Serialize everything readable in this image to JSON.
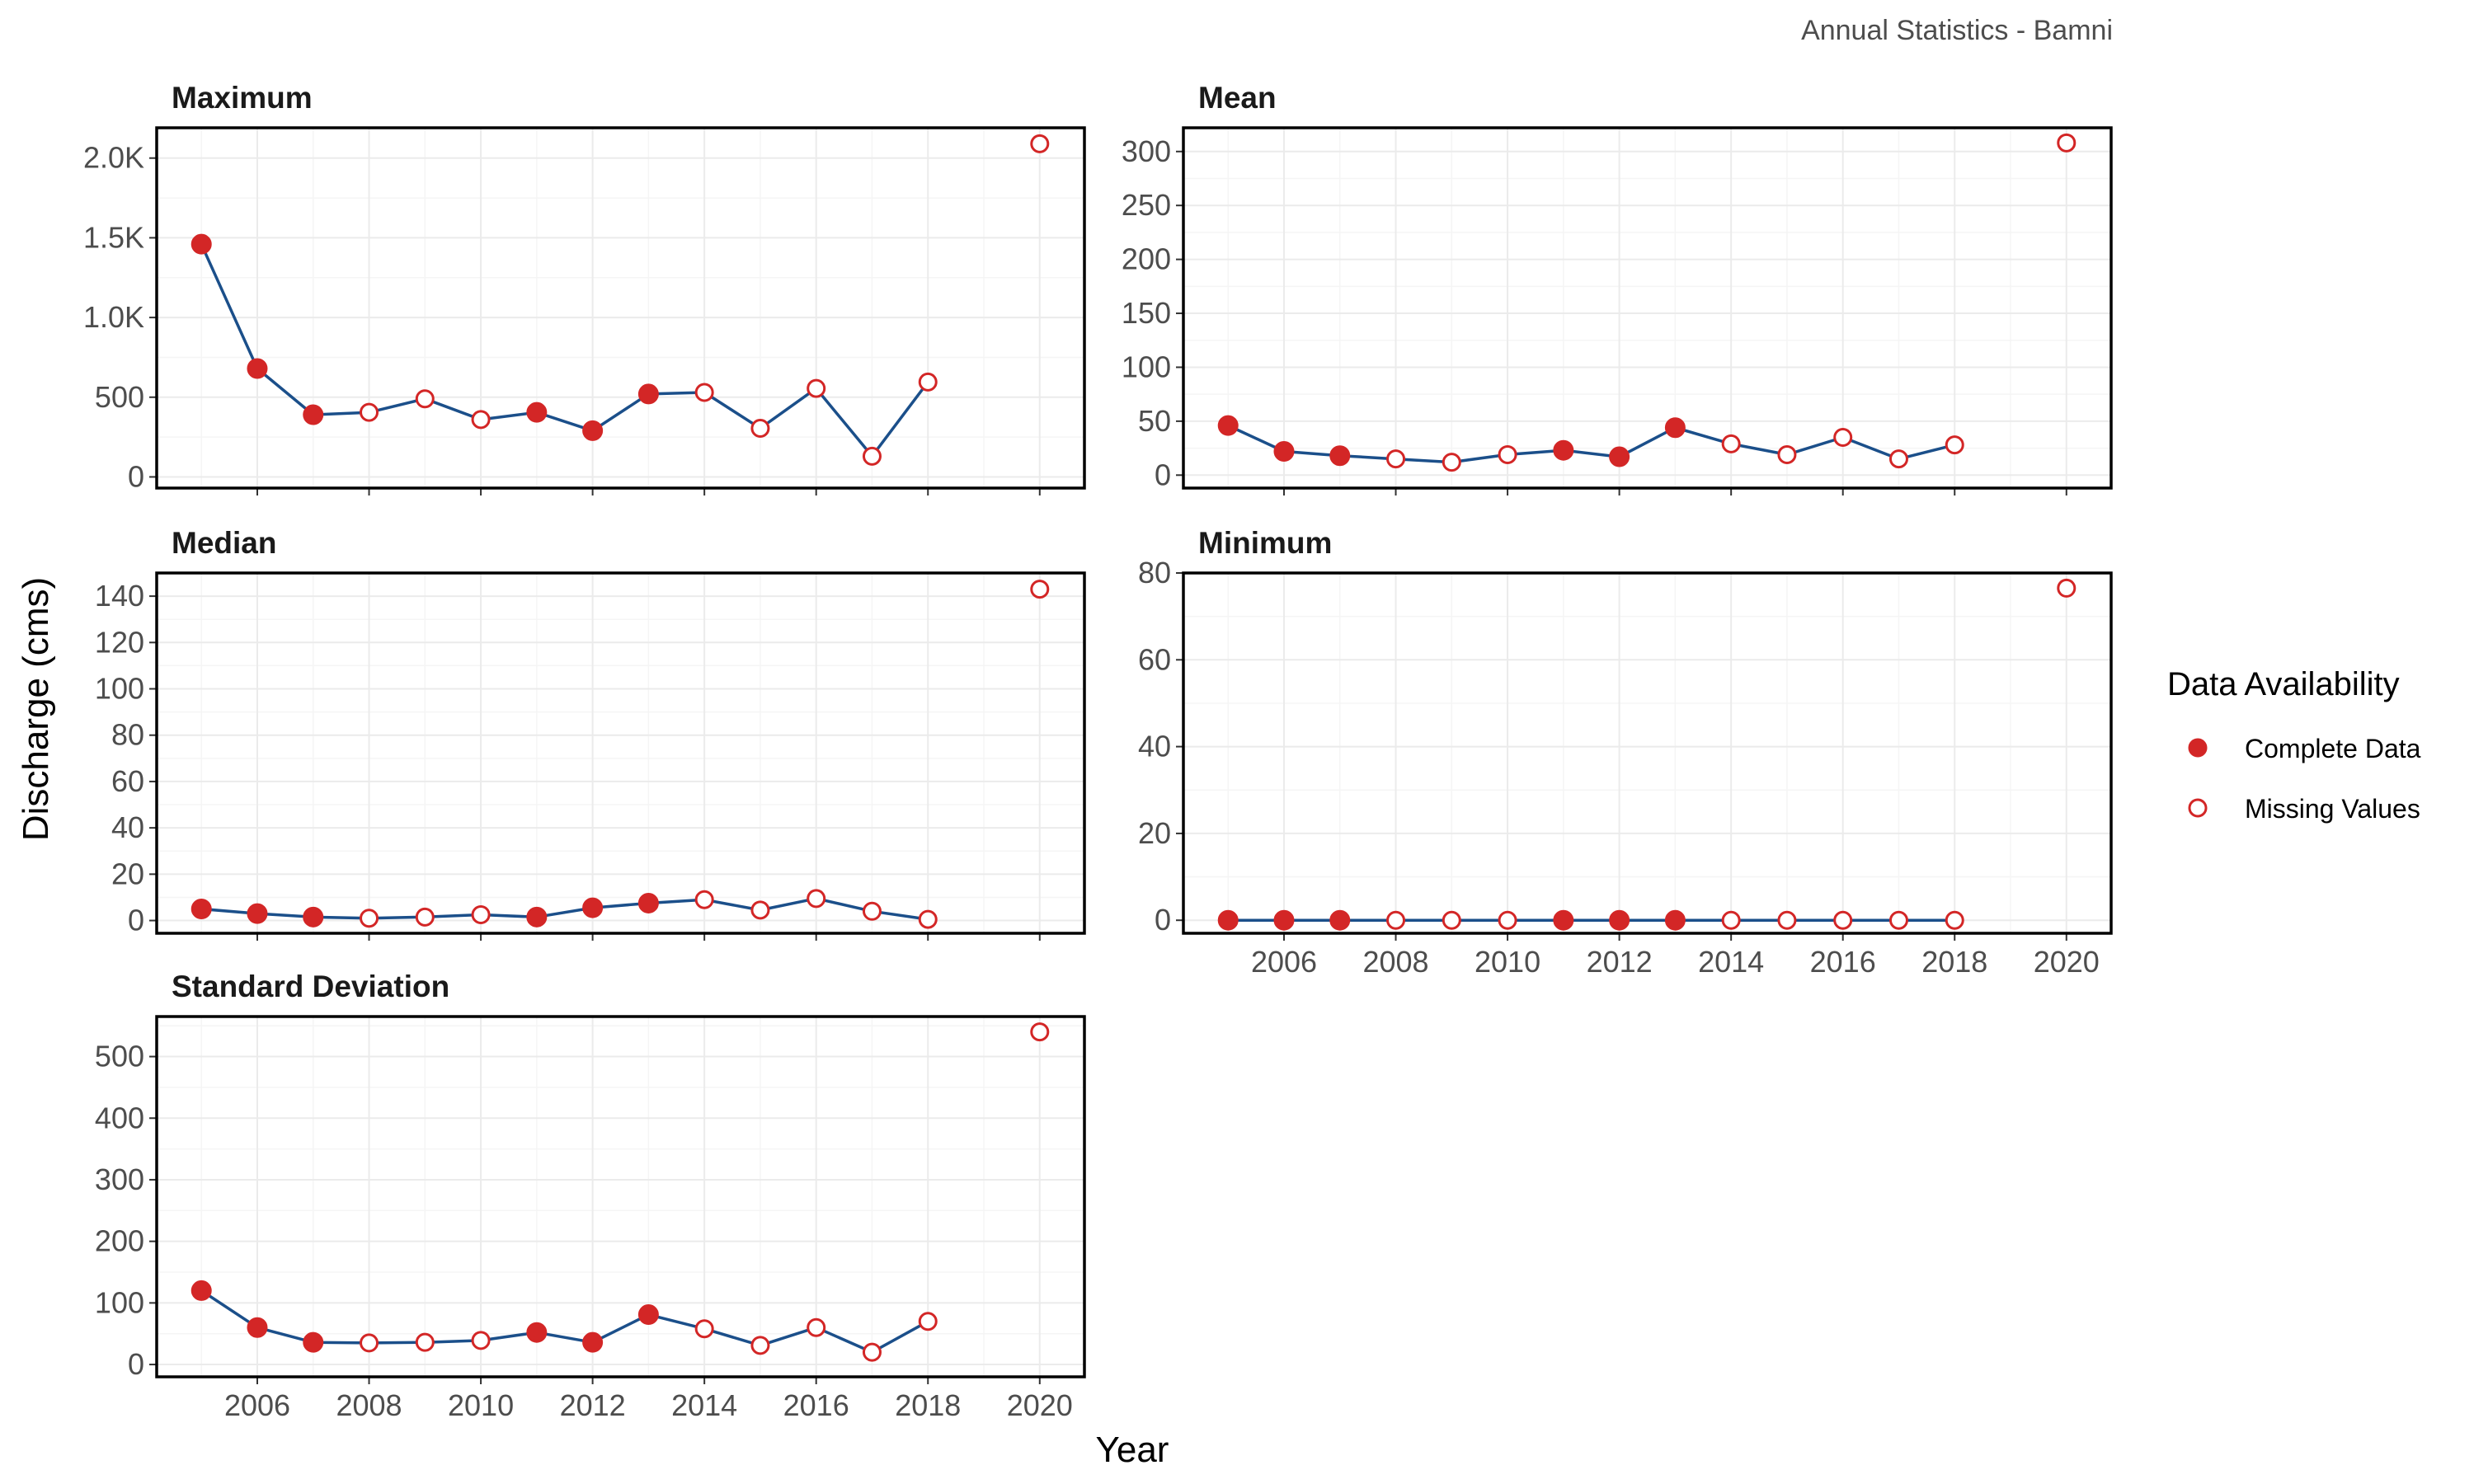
{
  "caption": "Annual Statistics - Bamni",
  "x_label": "Year",
  "y_label": "Discharge (cms)",
  "legend": {
    "title": "Data Availability",
    "items": [
      {
        "label": "Complete Data",
        "filled": true
      },
      {
        "label": "Missing Values",
        "filled": false
      }
    ]
  },
  "colors": {
    "line": "#1b4f8a",
    "point": "#d32626",
    "grid_major": "#ebebeb",
    "grid_minor": "#f5f5f5",
    "panel_border": "#000000"
  },
  "chart_data": [
    {
      "type": "line",
      "title": "Maximum",
      "x": [
        2005,
        2006,
        2007,
        2008,
        2009,
        2010,
        2011,
        2012,
        2013,
        2014,
        2015,
        2016,
        2017,
        2018,
        2020
      ],
      "y": [
        1460,
        680,
        390,
        405,
        490,
        360,
        405,
        290,
        520,
        530,
        305,
        555,
        130,
        595,
        2090
      ],
      "complete": [
        true,
        true,
        true,
        false,
        false,
        false,
        true,
        true,
        true,
        false,
        false,
        false,
        false,
        false,
        false
      ],
      "ylim": [
        -70,
        2190
      ],
      "y_ticks": [
        0,
        500,
        1000,
        1500,
        2000
      ],
      "y_tick_labels": [
        "0",
        "500",
        "1.0K",
        "1.5K",
        "2.0K"
      ],
      "x_ticks": [
        2006,
        2008,
        2010,
        2012,
        2014,
        2016,
        2018,
        2020
      ],
      "x_tick_labels": [
        "2006",
        "2008",
        "2010",
        "2012",
        "2014",
        "2016",
        "2018",
        "2020"
      ],
      "show_x_ticks": false
    },
    {
      "type": "line",
      "title": "Mean",
      "x": [
        2005,
        2006,
        2007,
        2008,
        2009,
        2010,
        2011,
        2012,
        2013,
        2014,
        2015,
        2016,
        2017,
        2018,
        2020
      ],
      "y": [
        46,
        22,
        18,
        15,
        12,
        19,
        23,
        17,
        44,
        29,
        19,
        35,
        15,
        28,
        308
      ],
      "complete": [
        true,
        true,
        true,
        false,
        false,
        false,
        true,
        true,
        true,
        false,
        false,
        false,
        false,
        false,
        false
      ],
      "ylim": [
        -12,
        322
      ],
      "y_ticks": [
        0,
        50,
        100,
        150,
        200,
        250,
        300
      ],
      "y_tick_labels": [
        "0",
        "50",
        "100",
        "150",
        "200",
        "250",
        "300"
      ],
      "x_ticks": [
        2006,
        2008,
        2010,
        2012,
        2014,
        2016,
        2018,
        2020
      ],
      "x_tick_labels": [
        "2006",
        "2008",
        "2010",
        "2012",
        "2014",
        "2016",
        "2018",
        "2020"
      ],
      "show_x_ticks": false
    },
    {
      "type": "line",
      "title": "Median",
      "x": [
        2005,
        2006,
        2007,
        2008,
        2009,
        2010,
        2011,
        2012,
        2013,
        2014,
        2015,
        2016,
        2017,
        2018,
        2020
      ],
      "y": [
        5,
        3,
        1.5,
        1,
        1.5,
        2.5,
        1.5,
        5.5,
        7.5,
        9,
        4.5,
        9.5,
        4,
        0.5,
        143
      ],
      "complete": [
        true,
        true,
        true,
        false,
        false,
        false,
        true,
        true,
        true,
        false,
        false,
        false,
        false,
        false,
        false
      ],
      "ylim": [
        -5.5,
        150
      ],
      "y_ticks": [
        0,
        20,
        40,
        60,
        80,
        100,
        120,
        140
      ],
      "y_tick_labels": [
        "0",
        "20",
        "40",
        "60",
        "80",
        "100",
        "120",
        "140"
      ],
      "x_ticks": [
        2006,
        2008,
        2010,
        2012,
        2014,
        2016,
        2018,
        2020
      ],
      "x_tick_labels": [
        "2006",
        "2008",
        "2010",
        "2012",
        "2014",
        "2016",
        "2018",
        "2020"
      ],
      "show_x_ticks": false
    },
    {
      "type": "line",
      "title": "Minimum",
      "x": [
        2005,
        2006,
        2007,
        2008,
        2009,
        2010,
        2011,
        2012,
        2013,
        2014,
        2015,
        2016,
        2017,
        2018,
        2020
      ],
      "y": [
        0,
        0,
        0,
        0,
        0,
        0,
        0,
        0,
        0,
        0,
        0,
        0,
        0,
        0,
        76.5
      ],
      "complete": [
        true,
        true,
        true,
        false,
        false,
        false,
        true,
        true,
        true,
        false,
        false,
        false,
        false,
        false,
        false
      ],
      "ylim": [
        -3,
        80
      ],
      "y_ticks": [
        0,
        20,
        40,
        60,
        80
      ],
      "y_tick_labels": [
        "0",
        "20",
        "40",
        "60",
        "80"
      ],
      "x_ticks": [
        2006,
        2008,
        2010,
        2012,
        2014,
        2016,
        2018,
        2020
      ],
      "x_tick_labels": [
        "2006",
        "2008",
        "2010",
        "2012",
        "2014",
        "2016",
        "2018",
        "2020"
      ],
      "show_x_ticks": true
    },
    {
      "type": "line",
      "title": "Standard Deviation",
      "x": [
        2005,
        2006,
        2007,
        2008,
        2009,
        2010,
        2011,
        2012,
        2013,
        2014,
        2015,
        2016,
        2017,
        2018,
        2020
      ],
      "y": [
        120,
        60,
        36,
        35,
        36,
        39,
        52,
        36,
        81,
        58,
        31,
        60,
        20,
        70,
        540
      ],
      "complete": [
        true,
        true,
        true,
        false,
        false,
        false,
        true,
        true,
        true,
        false,
        false,
        false,
        false,
        false,
        false
      ],
      "ylim": [
        -20,
        565
      ],
      "y_ticks": [
        0,
        100,
        200,
        300,
        400,
        500
      ],
      "y_tick_labels": [
        "0",
        "100",
        "200",
        "300",
        "400",
        "500"
      ],
      "x_ticks": [
        2006,
        2008,
        2010,
        2012,
        2014,
        2016,
        2018,
        2020
      ],
      "x_tick_labels": [
        "2006",
        "2008",
        "2010",
        "2012",
        "2014",
        "2016",
        "2018",
        "2020"
      ],
      "show_x_ticks": true
    }
  ]
}
